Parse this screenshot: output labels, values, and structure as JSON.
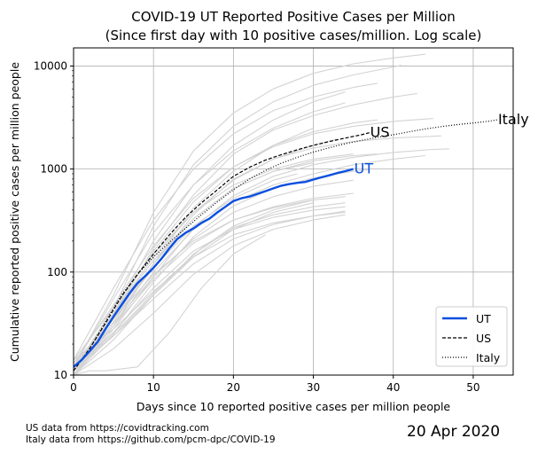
{
  "chart_data": {
    "type": "line",
    "title_line1": "COVID-19 UT Reported Positive Cases per Million",
    "title_line2": "(Since first day with 10 positive cases/million. Log scale)",
    "xlabel": "Days since 10 reported positive cases per million people",
    "ylabel": "Cumulative reported positive cases per million people",
    "yscale": "log",
    "xlim": [
      0,
      55
    ],
    "ylim": [
      10,
      15000
    ],
    "xticks": [
      0,
      10,
      20,
      30,
      40,
      50
    ],
    "xtick_labels": [
      "0",
      "10",
      "20",
      "30",
      "40",
      "50"
    ],
    "yticks": [
      10,
      100,
      1000,
      10000
    ],
    "ytick_labels": [
      "10",
      "100",
      "1000",
      "10000"
    ],
    "grid": true,
    "legend": "bottom-right",
    "legend_entries": [
      "UT",
      "US",
      "Italy"
    ],
    "series": [
      {
        "name": "UT",
        "color": "#0b4fe0",
        "style": "solid",
        "label": "UT",
        "x": [
          0,
          1,
          2,
          3,
          4,
          5,
          6,
          7,
          8,
          9,
          10,
          11,
          12,
          13,
          14,
          15,
          16,
          17,
          18,
          19,
          20,
          21,
          22,
          23,
          24,
          25,
          26,
          27,
          28,
          29,
          30,
          31,
          32,
          33,
          34,
          35
        ],
        "y": [
          12,
          14,
          17,
          21,
          28,
          37,
          48,
          62,
          78,
          92,
          110,
          135,
          170,
          210,
          240,
          265,
          300,
          330,
          380,
          430,
          490,
          520,
          540,
          575,
          610,
          650,
          690,
          715,
          735,
          750,
          790,
          830,
          870,
          915,
          955,
          1000
        ]
      },
      {
        "name": "US",
        "color": "#000000",
        "style": "dashed",
        "label": "US",
        "x": [
          0,
          2,
          4,
          6,
          8,
          10,
          12,
          14,
          16,
          18,
          20,
          22,
          24,
          26,
          28,
          30,
          32,
          34,
          36,
          37
        ],
        "y": [
          11,
          18,
          32,
          58,
          95,
          150,
          230,
          340,
          470,
          630,
          850,
          1040,
          1220,
          1380,
          1540,
          1700,
          1850,
          2000,
          2150,
          2250
        ]
      },
      {
        "name": "Italy",
        "color": "#000000",
        "style": "dotted",
        "label": "Italy",
        "x": [
          0,
          2,
          4,
          6,
          8,
          10,
          12,
          14,
          16,
          18,
          20,
          22,
          24,
          26,
          28,
          30,
          32,
          34,
          36,
          38,
          40,
          42,
          44,
          46,
          48,
          50,
          52,
          53
        ],
        "y": [
          11,
          18,
          33,
          60,
          95,
          140,
          195,
          265,
          360,
          480,
          630,
          800,
          970,
          1140,
          1300,
          1460,
          1610,
          1760,
          1900,
          2030,
          2150,
          2300,
          2450,
          2580,
          2700,
          2800,
          2920,
          3000
        ]
      }
    ],
    "background_series_color": "#d3d3d3",
    "background_series": [
      {
        "x": [
          0,
          5,
          10,
          15,
          20,
          25,
          30,
          35,
          40,
          44
        ],
        "y": [
          12,
          60,
          380,
          1500,
          3500,
          6000,
          8500,
          10500,
          12000,
          13000
        ]
      },
      {
        "x": [
          0,
          5,
          10,
          15,
          20,
          25,
          30,
          35,
          40,
          41
        ],
        "y": [
          11,
          45,
          280,
          1100,
          2600,
          4500,
          6500,
          8200,
          9800,
          10200
        ]
      },
      {
        "x": [
          0,
          5,
          10,
          15,
          20,
          25,
          30,
          35,
          38
        ],
        "y": [
          14,
          70,
          320,
          1000,
          2200,
          3700,
          5000,
          6200,
          6800
        ]
      },
      {
        "x": [
          0,
          5,
          10,
          15,
          20,
          25,
          30,
          35,
          40,
          43
        ],
        "y": [
          10,
          38,
          170,
          560,
          1400,
          2400,
          3300,
          4200,
          5000,
          5400
        ]
      },
      {
        "x": [
          0,
          5,
          10,
          15,
          20,
          25,
          30,
          34
        ],
        "y": [
          12,
          55,
          240,
          700,
          1500,
          2500,
          3600,
          4400
        ]
      },
      {
        "x": [
          0,
          5,
          10,
          15,
          20,
          25,
          30,
          34
        ],
        "y": [
          10,
          40,
          200,
          700,
          1700,
          3000,
          4500,
          5600
        ]
      },
      {
        "x": [
          0,
          5,
          10,
          15,
          20,
          25,
          30,
          35,
          40,
          45
        ],
        "y": [
          11,
          40,
          160,
          480,
          1050,
          1650,
          2200,
          2600,
          2900,
          3100
        ]
      },
      {
        "x": [
          0,
          5,
          10,
          15,
          20,
          25,
          30,
          35,
          38
        ],
        "y": [
          13,
          48,
          180,
          520,
          1050,
          1700,
          2300,
          2800,
          3000
        ]
      },
      {
        "x": [
          0,
          5,
          10,
          15,
          20,
          25,
          30,
          35,
          40,
          46
        ],
        "y": [
          12,
          36,
          120,
          360,
          800,
          1250,
          1600,
          1850,
          2000,
          2100
        ]
      },
      {
        "x": [
          0,
          5,
          10,
          15,
          20,
          25,
          30,
          35,
          40,
          45,
          47
        ],
        "y": [
          10,
          28,
          90,
          270,
          550,
          850,
          1100,
          1300,
          1450,
          1550,
          1570
        ]
      },
      {
        "x": [
          0,
          5,
          10,
          15,
          20,
          25,
          30,
          35,
          40,
          44
        ],
        "y": [
          11,
          30,
          100,
          260,
          480,
          700,
          900,
          1100,
          1250,
          1350
        ]
      },
      {
        "x": [
          0,
          5,
          10,
          15,
          20,
          25,
          30,
          35,
          38
        ],
        "y": [
          12,
          40,
          130,
          330,
          650,
          950,
          1200,
          1350,
          1400
        ]
      },
      {
        "x": [
          0,
          5,
          10,
          15,
          20,
          25,
          30,
          35
        ],
        "y": [
          14,
          45,
          150,
          380,
          700,
          1000,
          1250,
          1400
        ]
      },
      {
        "x": [
          0,
          5,
          10,
          15,
          20,
          25,
          30,
          35,
          37
        ],
        "y": [
          10,
          25,
          80,
          220,
          440,
          650,
          820,
          950,
          990
        ]
      },
      {
        "x": [
          0,
          5,
          10,
          15,
          20,
          25,
          30,
          35
        ],
        "y": [
          11,
          32,
          90,
          210,
          380,
          540,
          680,
          780
        ]
      },
      {
        "x": [
          0,
          5,
          10,
          15,
          20,
          25,
          30,
          35
        ],
        "y": [
          12,
          30,
          85,
          190,
          320,
          430,
          520,
          580
        ]
      },
      {
        "x": [
          0,
          5,
          10,
          15,
          20,
          25,
          30,
          34
        ],
        "y": [
          13,
          35,
          95,
          200,
          320,
          420,
          500,
          540
        ]
      },
      {
        "x": [
          0,
          5,
          10,
          15,
          20,
          25,
          30,
          34
        ],
        "y": [
          10,
          22,
          60,
          150,
          270,
          360,
          430,
          470
        ]
      },
      {
        "x": [
          0,
          5,
          10,
          15,
          20,
          25,
          30,
          34
        ],
        "y": [
          11,
          26,
          70,
          160,
          260,
          340,
          400,
          430
        ]
      },
      {
        "x": [
          0,
          5,
          10,
          15,
          20,
          25,
          30,
          34
        ],
        "y": [
          12,
          24,
          55,
          120,
          210,
          290,
          350,
          390
        ]
      },
      {
        "x": [
          0,
          5,
          10,
          15,
          20,
          25,
          30,
          34
        ],
        "y": [
          10,
          18,
          40,
          95,
          180,
          260,
          320,
          360
        ]
      },
      {
        "x": [
          0,
          5,
          10,
          15,
          20,
          25,
          30,
          34
        ],
        "y": [
          14,
          28,
          65,
          140,
          230,
          300,
          350,
          380
        ]
      },
      {
        "x": [
          0,
          5,
          10,
          15,
          20,
          25,
          30
        ],
        "y": [
          11,
          24,
          60,
          140,
          260,
          380,
          470
        ]
      },
      {
        "x": [
          0,
          5,
          10,
          15,
          20,
          25,
          30,
          33
        ],
        "y": [
          12,
          40,
          140,
          380,
          780,
          1250,
          1700,
          1950
        ]
      },
      {
        "x": [
          0,
          5,
          10,
          15,
          20,
          25,
          30
        ],
        "y": [
          10,
          30,
          120,
          420,
          950,
          1700,
          2500
        ]
      },
      {
        "x": [
          0,
          3,
          6,
          10,
          15,
          20,
          25,
          30
        ],
        "y": [
          12,
          20,
          42,
          120,
          330,
          650,
          950,
          1150
        ]
      },
      {
        "x": [
          0,
          2,
          4,
          8,
          12,
          16,
          20,
          24
        ],
        "y": [
          10,
          11,
          11,
          12,
          26,
          70,
          150,
          230
        ]
      },
      {
        "x": [
          0,
          3,
          6,
          9,
          12,
          16,
          20,
          25,
          30
        ],
        "y": [
          12,
          19,
          30,
          52,
          90,
          170,
          280,
          400,
          500
        ]
      },
      {
        "x": [
          0,
          5,
          10,
          15,
          20,
          25,
          28
        ],
        "y": [
          11,
          35,
          110,
          280,
          520,
          780,
          900
        ]
      }
    ]
  },
  "footer": {
    "line1": "US data from https://covidtracking.com",
    "line2": "Italy data from https://github.com/pcm-dpc/COVID-19"
  },
  "date": "20 Apr 2020"
}
